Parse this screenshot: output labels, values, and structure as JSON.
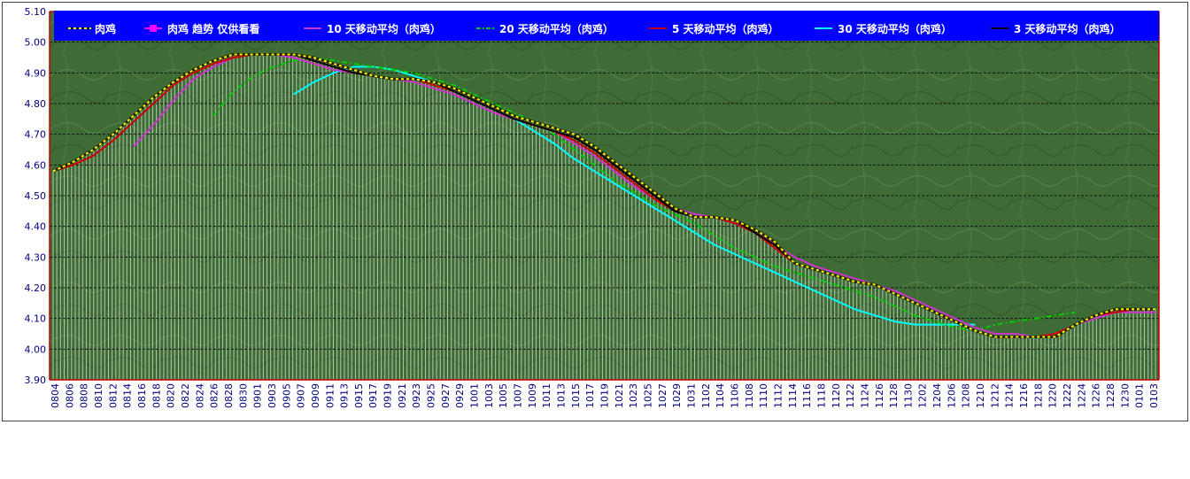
{
  "chart_data": {
    "type": "line",
    "ylim": [
      3.9,
      5.1
    ],
    "y_ticks": [
      "3.90",
      "4.00",
      "4.10",
      "4.20",
      "4.30",
      "4.40",
      "4.50",
      "4.60",
      "4.70",
      "4.80",
      "4.90",
      "5.00",
      "5.10"
    ],
    "grid": true,
    "legend_position": "top",
    "x_labels": [
      "0804",
      "0806",
      "0808",
      "0810",
      "0812",
      "0814",
      "0816",
      "0818",
      "0820",
      "0822",
      "0824",
      "0826",
      "0828",
      "0830",
      "0901",
      "0903",
      "0905",
      "0907",
      "0909",
      "0911",
      "0913",
      "0915",
      "0917",
      "0919",
      "0921",
      "0923",
      "0925",
      "0927",
      "0929",
      "1001",
      "1003",
      "1005",
      "1007",
      "1009",
      "1011",
      "1013",
      "1015",
      "1017",
      "1019",
      "1021",
      "1023",
      "1025",
      "1027",
      "1029",
      "1031",
      "1102",
      "1104",
      "1106",
      "1108",
      "1110",
      "1112",
      "1114",
      "1116",
      "1118",
      "1120",
      "1122",
      "1124",
      "1126",
      "1128",
      "1130",
      "1202",
      "1204",
      "1206",
      "1208",
      "1210",
      "1212",
      "1214",
      "1216",
      "1218",
      "1220",
      "1222",
      "1224",
      "1226",
      "1228",
      "1230",
      "0101",
      "0103"
    ],
    "series": [
      {
        "name": "肉鸡",
        "color": "#ffff00",
        "style": "price-dots",
        "values": [
          4.58,
          4.61,
          4.65,
          4.7,
          4.76,
          4.82,
          4.87,
          4.91,
          4.94,
          4.96,
          4.96,
          4.96,
          4.96,
          4.95,
          4.93,
          4.91,
          4.89,
          4.88,
          4.88,
          4.87,
          4.85,
          4.82,
          4.79,
          4.76,
          4.74,
          4.72,
          4.7,
          4.66,
          4.61,
          4.56,
          4.51,
          4.46,
          4.43,
          4.43,
          4.42,
          4.39,
          4.35,
          4.28,
          4.26,
          4.24,
          4.22,
          4.21,
          4.18,
          4.15,
          4.12,
          4.09,
          4.06,
          4.04,
          4.04,
          4.04,
          4.04,
          4.08,
          4.11,
          4.13,
          4.13,
          4.13
        ]
      },
      {
        "name": "肉鸡 趋势 仅供看看",
        "color": "#ff00ff",
        "style": "markers",
        "values": []
      },
      {
        "name": "10 天移动平均（肉鸡）",
        "color": "#cc33cc",
        "style": "solid",
        "values": [
          null,
          null,
          null,
          null,
          4.66,
          4.73,
          4.81,
          4.88,
          4.92,
          4.95,
          4.96,
          4.96,
          4.95,
          4.93,
          4.91,
          4.9,
          4.89,
          4.88,
          4.87,
          4.85,
          4.83,
          4.8,
          4.77,
          4.75,
          4.73,
          4.71,
          4.67,
          4.63,
          4.58,
          4.53,
          4.49,
          4.46,
          4.44,
          4.43,
          4.41,
          4.39,
          4.34,
          4.3,
          4.27,
          4.25,
          4.23,
          4.21,
          4.19,
          4.16,
          4.13,
          4.1,
          4.07,
          4.05,
          4.05,
          4.04,
          4.05,
          4.08,
          4.1,
          4.12,
          4.12,
          4.12
        ]
      },
      {
        "name": "20 天移动平均（肉鸡）",
        "color": "#00cc00",
        "style": "dashdot",
        "values": [
          null,
          null,
          null,
          null,
          null,
          null,
          null,
          null,
          4.76,
          4.84,
          4.89,
          4.92,
          4.94,
          4.95,
          4.94,
          4.93,
          4.92,
          4.91,
          4.9,
          4.88,
          4.86,
          4.83,
          4.8,
          4.77,
          4.74,
          4.7,
          4.65,
          4.6,
          4.55,
          4.51,
          4.47,
          4.44,
          4.41,
          4.37,
          4.33,
          4.3,
          4.27,
          4.25,
          4.23,
          4.21,
          4.19,
          4.17,
          4.14,
          4.11,
          4.09,
          4.07,
          4.06,
          4.08,
          4.09,
          4.1,
          4.11,
          4.12
        ]
      },
      {
        "name": "5 天移动平均（肉鸡）",
        "color": "#cc0000",
        "style": "solid",
        "values": [
          4.58,
          4.6,
          4.63,
          4.68,
          4.74,
          4.8,
          4.86,
          4.9,
          4.93,
          4.95,
          4.96,
          4.96,
          4.96,
          4.94,
          4.92,
          4.9,
          4.89,
          4.88,
          4.88,
          4.86,
          4.84,
          4.81,
          4.78,
          4.75,
          4.73,
          4.71,
          4.68,
          4.64,
          4.59,
          4.54,
          4.49,
          4.45,
          4.43,
          4.43,
          4.41,
          4.38,
          4.33,
          4.28,
          4.26,
          4.24,
          4.22,
          4.21,
          4.18,
          4.15,
          4.12,
          4.09,
          4.06,
          4.04,
          4.04,
          4.04,
          4.05,
          4.08,
          4.11,
          4.12,
          4.13,
          4.13
        ]
      },
      {
        "name": "30 天移动平均（肉鸡）",
        "color": "#00ffff",
        "style": "solid",
        "values": [
          null,
          null,
          null,
          null,
          null,
          null,
          null,
          null,
          null,
          null,
          null,
          null,
          4.83,
          4.87,
          4.9,
          4.92,
          4.92,
          4.91,
          4.89,
          4.87,
          4.84,
          4.81,
          4.78,
          4.75,
          4.71,
          4.67,
          4.62,
          4.58,
          4.54,
          4.5,
          4.46,
          4.42,
          4.38,
          4.34,
          4.31,
          4.28,
          4.25,
          4.22,
          4.19,
          4.16,
          4.13,
          4.11,
          4.09,
          4.08,
          4.08,
          4.08,
          4.08
        ]
      },
      {
        "name": "3 天移动平均（肉鸡）",
        "color": "#000000",
        "style": "solid",
        "values": [
          4.58,
          4.61,
          4.65,
          4.7,
          4.76,
          4.82,
          4.87,
          4.91,
          4.94,
          4.96,
          4.96,
          4.96,
          4.96,
          4.94,
          4.92,
          4.9,
          4.89,
          4.88,
          4.88,
          4.87,
          4.84,
          4.81,
          4.78,
          4.75,
          4.73,
          4.71,
          4.69,
          4.65,
          4.6,
          4.55,
          4.5,
          4.45,
          4.43,
          4.43,
          4.42,
          4.38,
          4.34,
          4.28,
          4.26,
          4.24,
          4.22,
          4.21,
          4.18,
          4.15,
          4.12,
          4.09,
          4.06,
          4.04,
          4.04,
          4.04,
          4.04,
          4.08,
          4.11,
          4.13,
          4.13,
          4.13
        ]
      }
    ]
  },
  "colors": {
    "plot_background": "#3f6b36",
    "legend_background": "#0000ff",
    "grid": "#000000",
    "axis": "#cc0000",
    "tick_text": "#000080"
  }
}
